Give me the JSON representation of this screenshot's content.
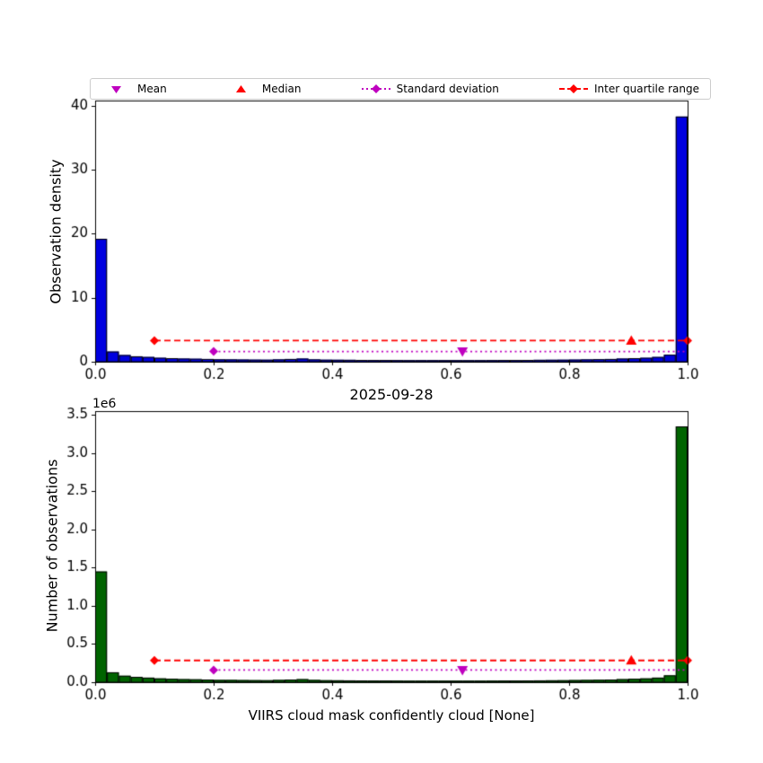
{
  "figure": {
    "background": "#ffffff"
  },
  "legend": {
    "items": [
      {
        "label": "Mean",
        "marker": "triangle-down-icon",
        "color": "#bf00bf"
      },
      {
        "label": "Median",
        "marker": "triangle-up-icon",
        "color": "#ff0000"
      },
      {
        "label": "Standard deviation",
        "marker": "diamond-dotted-line-icon",
        "color": "#bf00bf"
      },
      {
        "label": "Inter quartile range",
        "marker": "diamond-dashed-line-icon",
        "color": "#ff0000"
      }
    ]
  },
  "chart_data": [
    {
      "type": "bar",
      "title": "",
      "ylabel": "Observation density",
      "bar_color": "#0000e0",
      "bar_edge_color": "#000000",
      "xlim": [
        0,
        1
      ],
      "ylim": [
        0,
        40.8
      ],
      "xtick_values": [
        0,
        0.2,
        0.4,
        0.6,
        0.8,
        1.0
      ],
      "xticks": [
        "0.0",
        "0.2",
        "0.4",
        "0.6",
        "0.8",
        "1.0"
      ],
      "ytick_values": [
        0,
        10,
        20,
        30,
        40
      ],
      "yticks": [
        "0",
        "10",
        "20",
        "30",
        "40"
      ],
      "bin_start": 0,
      "bin_width": 0.02,
      "values": [
        19.2,
        1.6,
        1.05,
        0.85,
        0.75,
        0.62,
        0.56,
        0.5,
        0.47,
        0.43,
        0.38,
        0.37,
        0.35,
        0.33,
        0.32,
        0.37,
        0.43,
        0.5,
        0.37,
        0.32,
        0.31,
        0.3,
        0.28,
        0.27,
        0.27,
        0.26,
        0.25,
        0.25,
        0.25,
        0.25,
        0.25,
        0.25,
        0.25,
        0.26,
        0.27,
        0.27,
        0.28,
        0.3,
        0.31,
        0.32,
        0.34,
        0.37,
        0.4,
        0.43,
        0.5,
        0.56,
        0.62,
        0.75,
        1.1,
        38.3
      ],
      "annotations": {
        "std": {
          "y": 1.6,
          "x0": 0.2,
          "x1": 1.0,
          "mean_x": 0.62,
          "color": "#bf00bf"
        },
        "iqr": {
          "y": 3.3,
          "x0": 0.1,
          "x1": 1.0,
          "median_x": 0.905,
          "color": "#ff0000"
        }
      }
    },
    {
      "type": "bar",
      "title": "2025-09-28",
      "ylabel": "Number of observations",
      "xlabel": "VIIRS cloud mask confidently cloud [None]",
      "y_offset_label": "1e6",
      "bar_color": "#006400",
      "bar_edge_color": "#000000",
      "xlim": [
        0,
        1
      ],
      "ylim": [
        0,
        3.55
      ],
      "xtick_values": [
        0,
        0.2,
        0.4,
        0.6,
        0.8,
        1.0
      ],
      "xticks": [
        "0.0",
        "0.2",
        "0.4",
        "0.6",
        "0.8",
        "1.0"
      ],
      "ytick_values": [
        0,
        0.5,
        1.0,
        1.5,
        2.0,
        2.5,
        3.0,
        3.5
      ],
      "yticks": [
        "0.0",
        "0.5",
        "1.0",
        "1.5",
        "2.0",
        "2.5",
        "3.0",
        "3.5"
      ],
      "bin_start": 0,
      "bin_width": 0.02,
      "values": [
        1.45,
        0.13,
        0.085,
        0.07,
        0.06,
        0.05,
        0.045,
        0.04,
        0.038,
        0.035,
        0.03,
        0.03,
        0.028,
        0.027,
        0.026,
        0.03,
        0.035,
        0.04,
        0.03,
        0.026,
        0.025,
        0.024,
        0.023,
        0.022,
        0.022,
        0.021,
        0.02,
        0.02,
        0.02,
        0.02,
        0.02,
        0.02,
        0.02,
        0.021,
        0.022,
        0.022,
        0.023,
        0.024,
        0.025,
        0.026,
        0.028,
        0.03,
        0.032,
        0.035,
        0.04,
        0.045,
        0.05,
        0.06,
        0.09,
        3.35
      ],
      "annotations": {
        "std": {
          "y": 0.16,
          "x0": 0.2,
          "x1": 1.0,
          "mean_x": 0.62,
          "color": "#bf00bf"
        },
        "iqr": {
          "y": 0.285,
          "x0": 0.1,
          "x1": 1.0,
          "median_x": 0.905,
          "color": "#ff0000"
        }
      }
    }
  ]
}
